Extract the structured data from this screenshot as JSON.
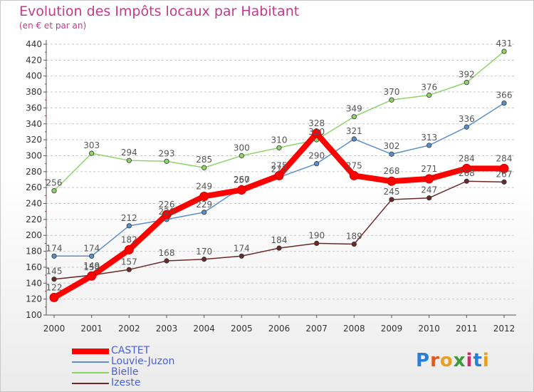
{
  "chart_data": {
    "type": "line",
    "title": "Evolution des Impôts locaux par Habitant",
    "subtitle": "(en € et par an)",
    "xlabel": "",
    "ylabel": "",
    "categories": [
      "2000",
      "2001",
      "2002",
      "2003",
      "2004",
      "2005",
      "2006",
      "2007",
      "2008",
      "2009",
      "2010",
      "2011",
      "2012"
    ],
    "ylim": [
      100,
      440
    ],
    "yticks": [
      100,
      120,
      140,
      160,
      180,
      200,
      220,
      240,
      260,
      280,
      300,
      320,
      340,
      360,
      380,
      400,
      420,
      440
    ],
    "grid": "horizontal dashed",
    "legend_position": "bottom-left",
    "series": [
      {
        "name": "CASTET",
        "color": "#ff0000",
        "values": [
          122,
          149,
          182,
          226,
          249,
          257,
          275,
          328,
          275,
          268,
          271,
          284,
          284
        ]
      },
      {
        "name": "Louvie-Juzon",
        "color": "#5b8fc7",
        "values": [
          174,
          174,
          212,
          220,
          229,
          260,
          273,
          290,
          321,
          302,
          313,
          336,
          366
        ]
      },
      {
        "name": "Bielle",
        "color": "#8ed46a",
        "values": [
          256,
          303,
          294,
          293,
          285,
          300,
          310,
          320,
          349,
          370,
          376,
          392,
          431
        ]
      },
      {
        "name": "Izeste",
        "color": "#6b2a2a",
        "values": [
          145,
          150,
          157,
          168,
          170,
          174,
          184,
          190,
          189,
          245,
          247,
          268,
          267
        ]
      }
    ]
  },
  "logo": {
    "letters": [
      "P",
      "r",
      "o",
      "x",
      "i",
      "t",
      "i"
    ],
    "colors": [
      "#2a7fd4",
      "#e05a1b",
      "#e8a020",
      "#3a9a3a",
      "#d42a6a",
      "#2a7fd4",
      "#e8a020"
    ]
  }
}
